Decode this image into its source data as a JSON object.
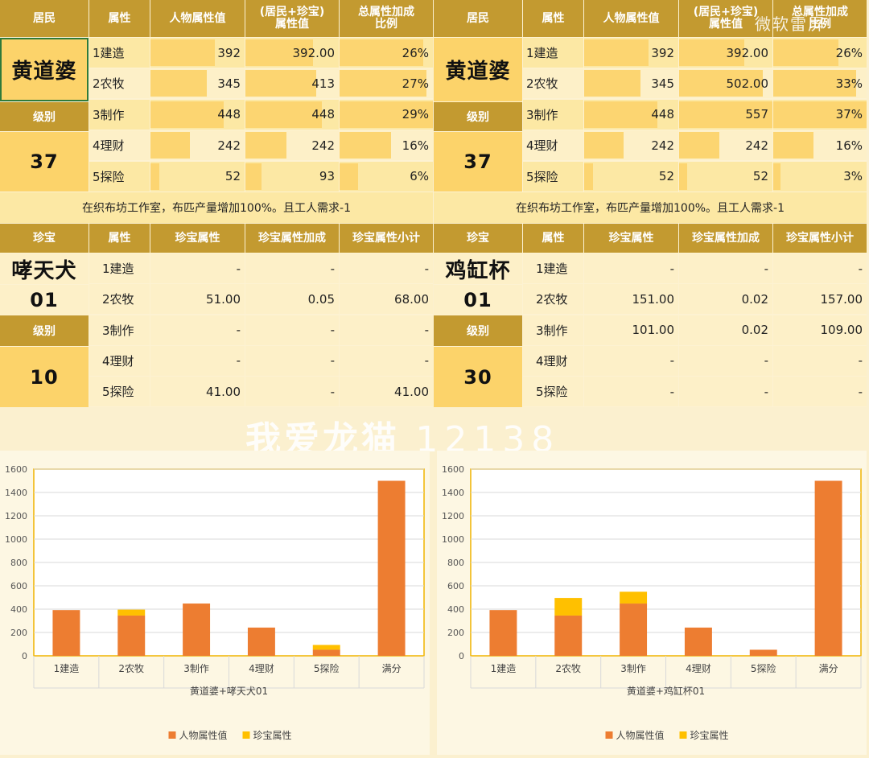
{
  "left_panel": {
    "headers": [
      "居民",
      "属性",
      "人物属性值",
      "(居民+珍宝)\n属性值",
      "总属性加成\n比例"
    ],
    "resident_name": "黄道婆",
    "level_label": "级别",
    "level_value": "37",
    "rows": [
      {
        "attr": "1建造",
        "person": "392",
        "person_frac": 0.68,
        "combined": "392.00",
        "combined_frac": 0.72,
        "ratio": "26%",
        "ratio_frac": 0.9
      },
      {
        "attr": "2农牧",
        "person": "345",
        "person_frac": 0.6,
        "combined": "413",
        "combined_frac": 0.76,
        "ratio": "27%",
        "ratio_frac": 0.93
      },
      {
        "attr": "3制作",
        "person": "448",
        "person_frac": 0.78,
        "combined": "448",
        "combined_frac": 0.82,
        "ratio": "29%",
        "ratio_frac": 1.0
      },
      {
        "attr": "4理财",
        "person": "242",
        "person_frac": 0.42,
        "combined": "242",
        "combined_frac": 0.44,
        "ratio": "16%",
        "ratio_frac": 0.55
      },
      {
        "attr": "5探险",
        "person": "52",
        "person_frac": 0.09,
        "combined": "93",
        "combined_frac": 0.17,
        "ratio": "6%",
        "ratio_frac": 0.2
      }
    ],
    "note": "在织布坊工作室，布匹产量增加100%。且工人需求-1",
    "treasure_headers": [
      "珍宝",
      "属性",
      "珍宝属性",
      "珍宝属性加成",
      "珍宝属性小计"
    ],
    "treasure_name": "哮天犬",
    "treasure_num": "01",
    "treasure_level_label": "级别",
    "treasure_level": "10",
    "treasure_rows": [
      {
        "attr": "1建造",
        "value": "-",
        "bonus": "-",
        "subtotal": "-"
      },
      {
        "attr": "2农牧",
        "value": "51.00",
        "bonus": "0.05",
        "subtotal": "68.00"
      },
      {
        "attr": "3制作",
        "value": "-",
        "bonus": "-",
        "subtotal": "-"
      },
      {
        "attr": "4理财",
        "value": "-",
        "bonus": "-",
        "subtotal": "-"
      },
      {
        "attr": "5探险",
        "value": "41.00",
        "bonus": "-",
        "subtotal": "41.00"
      }
    ]
  },
  "right_panel": {
    "headers": [
      "居民",
      "属性",
      "人物属性值",
      "(居民+珍宝)\n属性值",
      "总属性加成\n比例"
    ],
    "resident_name": "黄道婆",
    "level_label": "级别",
    "level_value": "37",
    "rows": [
      {
        "attr": "1建造",
        "person": "392",
        "person_frac": 0.68,
        "combined": "392.00",
        "combined_frac": 0.7,
        "ratio": "26%",
        "ratio_frac": 0.7
      },
      {
        "attr": "2农牧",
        "person": "345",
        "person_frac": 0.6,
        "combined": "502.00",
        "combined_frac": 0.9,
        "ratio": "33%",
        "ratio_frac": 0.89
      },
      {
        "attr": "3制作",
        "person": "448",
        "person_frac": 0.78,
        "combined": "557",
        "combined_frac": 1.0,
        "ratio": "37%",
        "ratio_frac": 1.0
      },
      {
        "attr": "4理财",
        "person": "242",
        "person_frac": 0.42,
        "combined": "242",
        "combined_frac": 0.43,
        "ratio": "16%",
        "ratio_frac": 0.43
      },
      {
        "attr": "5探险",
        "person": "52",
        "person_frac": 0.09,
        "combined": "52",
        "combined_frac": 0.09,
        "ratio": "3%",
        "ratio_frac": 0.08
      }
    ],
    "note": "在织布坊工作室，布匹产量增加100%。且工人需求-1",
    "treasure_headers": [
      "珍宝",
      "属性",
      "珍宝属性",
      "珍宝属性加成",
      "珍宝属性小计"
    ],
    "treasure_name": "鸡缸杯",
    "treasure_num": "01",
    "treasure_level_label": "级别",
    "treasure_level": "30",
    "treasure_rows": [
      {
        "attr": "1建造",
        "value": "-",
        "bonus": "-",
        "subtotal": "-"
      },
      {
        "attr": "2农牧",
        "value": "151.00",
        "bonus": "0.02",
        "subtotal": "157.00"
      },
      {
        "attr": "3制作",
        "value": "101.00",
        "bonus": "0.02",
        "subtotal": "109.00"
      },
      {
        "attr": "4理财",
        "value": "-",
        "bonus": "-",
        "subtotal": "-"
      },
      {
        "attr": "5探险",
        "value": "-",
        "bonus": "-",
        "subtotal": "-"
      }
    ]
  },
  "watermark": {
    "text": "我爱龙猫",
    "num": "12138",
    "corner": "微软雷屏"
  },
  "colors": {
    "header": "#c39a30",
    "person": "#ed7d31",
    "treasure": "#ffc000",
    "cellbar": "#fcd571"
  },
  "chart_data": [
    {
      "type": "bar",
      "stacked": true,
      "categories": [
        "1建造",
        "2农牧",
        "3制作",
        "4理财",
        "5探险",
        "满分"
      ],
      "series": [
        {
          "name": "人物属性值",
          "values": [
            392,
            345,
            448,
            242,
            52,
            1500
          ]
        },
        {
          "name": "珍宝属性",
          "values": [
            0,
            51,
            0,
            0,
            41,
            0
          ]
        }
      ],
      "xlabel": "黄道婆+哮天犬01",
      "ylim": [
        0,
        1600
      ],
      "yticks": [
        "0",
        "200",
        "400",
        "600",
        "800",
        "1000",
        "1200",
        "1400",
        "1600"
      ],
      "grid": true,
      "legend": "bottom"
    },
    {
      "type": "bar",
      "stacked": true,
      "categories": [
        "1建造",
        "2农牧",
        "3制作",
        "4理财",
        "5探险",
        "满分"
      ],
      "series": [
        {
          "name": "人物属性值",
          "values": [
            392,
            345,
            448,
            242,
            52,
            1500
          ]
        },
        {
          "name": "珍宝属性",
          "values": [
            0,
            151,
            101,
            0,
            0,
            0
          ]
        }
      ],
      "xlabel": "黄道婆+鸡缸杯01",
      "ylim": [
        0,
        1600
      ],
      "yticks": [
        "0",
        "200",
        "400",
        "600",
        "800",
        "1000",
        "1200",
        "1400",
        "1600"
      ],
      "grid": true,
      "legend": "bottom"
    }
  ]
}
